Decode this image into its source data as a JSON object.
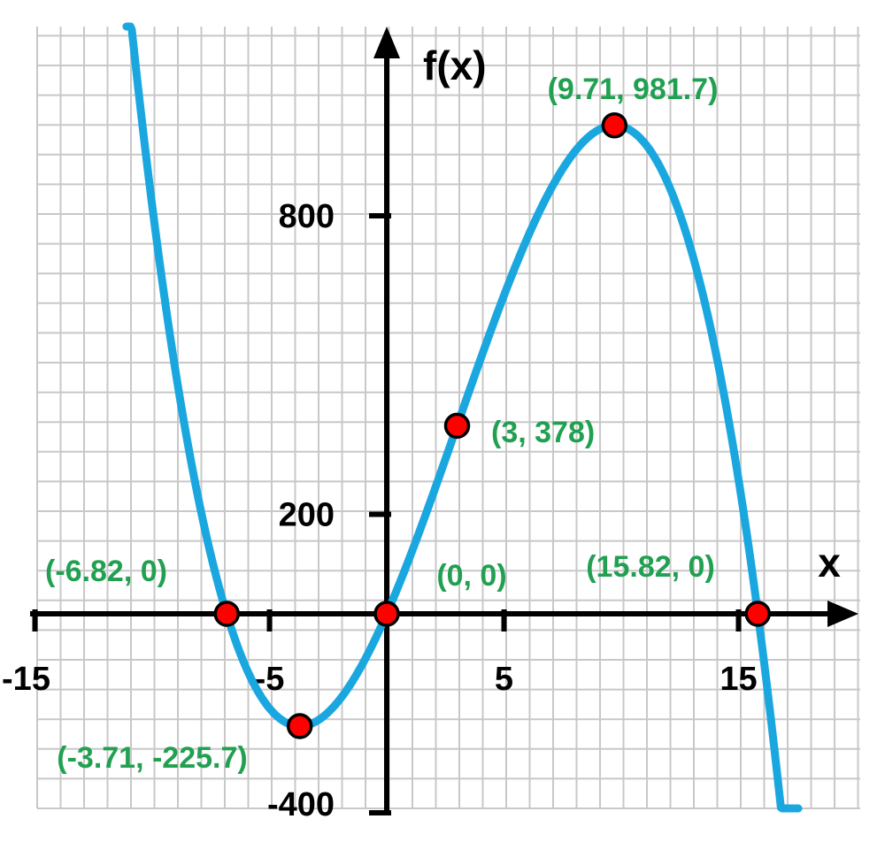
{
  "chart_data": {
    "type": "line",
    "title": "",
    "xlabel": "x",
    "ylabel": "f(x)",
    "xlim": [
      -15,
      19.8
    ],
    "ylim": [
      -400,
      1220
    ],
    "grid": true,
    "curve": {
      "expression": "-x^3 + 9x^2 + 108x",
      "x_range": [
        -11.1,
        17.55
      ],
      "color": "#1aa7e0"
    },
    "x_ticks": [
      {
        "value": -15,
        "label": "-15"
      },
      {
        "value": -5,
        "label": "-5"
      },
      {
        "value": 5,
        "label": "5"
      },
      {
        "value": 15,
        "label": "15"
      }
    ],
    "y_ticks": [
      {
        "value": 800,
        "label": "800"
      },
      {
        "value": 200,
        "label": "200"
      },
      {
        "value": -400,
        "label": "-400"
      }
    ],
    "points": [
      {
        "x": -6.82,
        "y": 0,
        "label": "(-6.82, 0)"
      },
      {
        "x": -3.71,
        "y": -225.7,
        "label": "(-3.71, -225.7)"
      },
      {
        "x": 0,
        "y": 0,
        "label": "(0, 0)"
      },
      {
        "x": 3,
        "y": 378,
        "label": "(3, 378)"
      },
      {
        "x": 9.71,
        "y": 981.7,
        "label": "(9.71, 981.7)"
      },
      {
        "x": 15.82,
        "y": 0,
        "label": "(15.82, 0)"
      }
    ],
    "colors": {
      "point_fill": "#ff0000",
      "label": "#22a052",
      "grid": "#c8c8c8",
      "axis": "#000000"
    }
  }
}
